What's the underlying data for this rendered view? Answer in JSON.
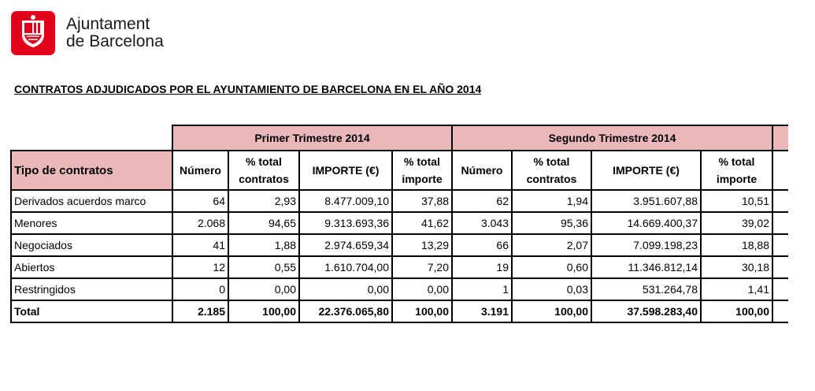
{
  "logo": {
    "line1": "Ajuntament",
    "line2": "de Barcelona",
    "icon": "barcelona-shield-icon",
    "brand_color": "#e3001b"
  },
  "document": {
    "title": "CONTRATOS ADJUDICADOS POR EL AYUNTAMIENTO DE BARCELONA EN EL AÑO 2014"
  },
  "table": {
    "type_header": "Tipo de contratos",
    "groups": [
      "Primer Trimestre 2014",
      "Segundo Trimestre 2014"
    ],
    "col_headers": {
      "numero": "Número",
      "pct_contratos_1": "% total",
      "pct_contratos_2": "contratos",
      "importe": "IMPORTE  (€)",
      "pct_importe_1": "% total",
      "pct_importe_2": "importe"
    },
    "header_fill": "#eab8b8",
    "rows": [
      {
        "tipo": "Derivados acuerdos marco",
        "q1": [
          "64",
          "2,93",
          "8.477.009,10",
          "37,88"
        ],
        "q2": [
          "62",
          "1,94",
          "3.951.607,88",
          "10,51"
        ]
      },
      {
        "tipo": "Menores",
        "q1": [
          "2.068",
          "94,65",
          "9.313.693,36",
          "41,62"
        ],
        "q2": [
          "3.043",
          "95,36",
          "14.669.400,37",
          "39,02"
        ]
      },
      {
        "tipo": "Negociados",
        "q1": [
          "41",
          "1,88",
          "2.974.659,34",
          "13,29"
        ],
        "q2": [
          "66",
          "2,07",
          "7.099.198,23",
          "18,88"
        ]
      },
      {
        "tipo": "Abiertos",
        "q1": [
          "12",
          "0,55",
          "1.610.704,00",
          "7,20"
        ],
        "q2": [
          "19",
          "0,60",
          "11.346.812,14",
          "30,18"
        ]
      },
      {
        "tipo": "Restringidos",
        "q1": [
          "0",
          "0,00",
          "0,00",
          "0,00"
        ],
        "q2": [
          "1",
          "0,03",
          "531.264,78",
          "1,41"
        ]
      }
    ],
    "total": {
      "label": "Total",
      "q1": [
        "2.185",
        "100,00",
        "22.376.065,80",
        "100,00"
      ],
      "q2": [
        "3.191",
        "100,00",
        "37.598.283,40",
        "100,00"
      ]
    }
  }
}
